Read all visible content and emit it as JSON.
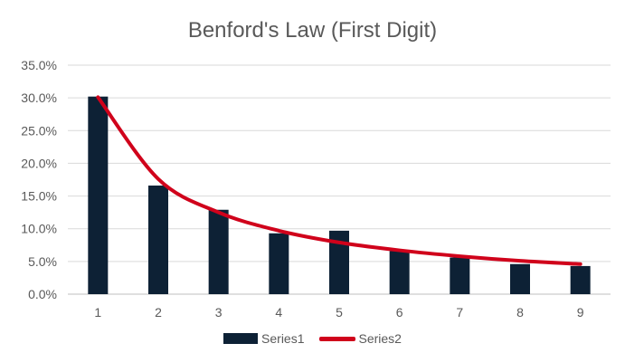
{
  "chart_data": {
    "type": "bar",
    "title": "Benford's Law (First Digit)",
    "xlabel": "",
    "ylabel": "",
    "categories": [
      "1",
      "2",
      "3",
      "4",
      "5",
      "6",
      "7",
      "8",
      "9"
    ],
    "series": [
      {
        "name": "Series1",
        "type": "bar",
        "color": "#0d2135",
        "values": [
          30.2,
          16.6,
          12.9,
          9.3,
          9.7,
          6.6,
          5.6,
          4.6,
          4.3
        ]
      },
      {
        "name": "Series2",
        "type": "line",
        "color": "#d0021b",
        "values": [
          30.1,
          17.6,
          12.5,
          9.7,
          7.9,
          6.7,
          5.8,
          5.1,
          4.6
        ]
      }
    ],
    "ylim": [
      0,
      35
    ],
    "yticks": [
      "0.0%",
      "5.0%",
      "10.0%",
      "15.0%",
      "20.0%",
      "25.0%",
      "30.0%",
      "35.0%"
    ],
    "grid": true,
    "legend_position": "bottom"
  }
}
